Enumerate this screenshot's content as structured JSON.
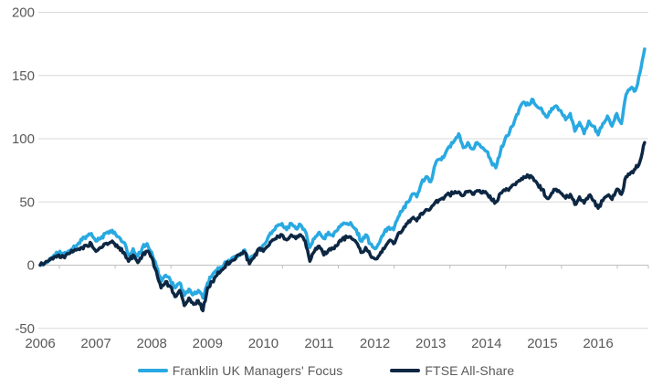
{
  "chart_data": {
    "type": "line",
    "title": "",
    "xlabel": "",
    "ylabel": "",
    "y_axis": {
      "ticks": [
        200,
        150,
        100,
        50,
        0,
        -50
      ],
      "min": -50,
      "max": 200,
      "grid": true
    },
    "x_axis": {
      "labels": [
        "2006",
        "2007",
        "2008",
        "2009",
        "2010",
        "2011",
        "2012",
        "2013",
        "2014",
        "2015",
        "2016"
      ]
    },
    "legend_position": "bottom",
    "series": [
      {
        "name": "Franklin UK Managers' Focus",
        "color": "#29A9E1",
        "start_year": 2006,
        "interval_months": 1,
        "values": [
          0,
          2,
          5,
          8,
          10,
          8,
          11,
          13,
          16,
          20,
          23,
          25,
          19,
          21,
          25,
          27,
          26,
          22,
          18,
          8,
          13,
          7,
          14,
          17,
          10,
          -1,
          -13,
          -8,
          -12,
          -18,
          -14,
          -24,
          -19,
          -23,
          -20,
          -26,
          -14,
          -8,
          -4,
          -2,
          2,
          4,
          6,
          9,
          12,
          3,
          8,
          12,
          16,
          22,
          27,
          31,
          33,
          28,
          33,
          29,
          32,
          27,
          14,
          21,
          26,
          21,
          26,
          23,
          28,
          32,
          33,
          32,
          28,
          19,
          24,
          17,
          13,
          18,
          26,
          30,
          28,
          38,
          44,
          50,
          56,
          54,
          65,
          70,
          66,
          80,
          84,
          87,
          94,
          98,
          104,
          93,
          97,
          92,
          97,
          93,
          90,
          82,
          77,
          90,
          100,
          106,
          114,
          123,
          129,
          127,
          131,
          125,
          122,
          117,
          124,
          126,
          122,
          115,
          120,
          106,
          113,
          104,
          114,
          110,
          103,
          112,
          118,
          110,
          120,
          112,
          135,
          140,
          138,
          152,
          171
        ]
      },
      {
        "name": "FTSE All-Share",
        "color": "#0D2743",
        "start_year": 2006,
        "interval_months": 1,
        "values": [
          0,
          1.5,
          4,
          6.5,
          8,
          6.5,
          9,
          10.5,
          12.5,
          14,
          15.5,
          17,
          11,
          14,
          17,
          18,
          17,
          14,
          10,
          3,
          8,
          2,
          8,
          11,
          6,
          -5,
          -18,
          -13,
          -17,
          -25,
          -20,
          -32,
          -26,
          -31,
          -28,
          -36,
          -18,
          -13,
          -8,
          -4,
          1,
          3,
          5,
          8,
          10,
          1,
          6,
          13,
          11,
          15,
          20,
          23,
          24,
          20,
          24,
          21,
          24,
          19,
          3,
          11,
          15,
          8,
          12,
          13,
          16,
          21,
          22,
          21,
          18,
          10,
          14,
          8,
          5,
          8,
          13,
          19,
          17,
          25,
          28,
          33,
          37,
          35,
          41,
          44,
          45,
          50,
          52,
          54,
          56,
          57,
          58,
          55,
          58,
          56,
          59,
          57,
          57,
          52,
          50,
          57,
          59,
          61,
          64,
          67,
          70,
          71,
          69,
          64,
          60,
          53,
          57,
          60,
          57,
          53,
          56,
          48,
          54,
          49,
          55,
          51,
          45,
          51,
          55,
          52,
          60,
          56,
          70,
          73,
          76,
          82,
          97
        ]
      }
    ]
  },
  "legend": {
    "items": [
      {
        "label": "Franklin UK Managers' Focus",
        "color": "#29A9E1"
      },
      {
        "label": "FTSE All-Share",
        "color": "#0D2743"
      }
    ]
  },
  "colors": {
    "background": "#ffffff",
    "gridline": "#D9D9D9",
    "axis_line": "#BFBFBF",
    "axis_text": "#595959"
  }
}
